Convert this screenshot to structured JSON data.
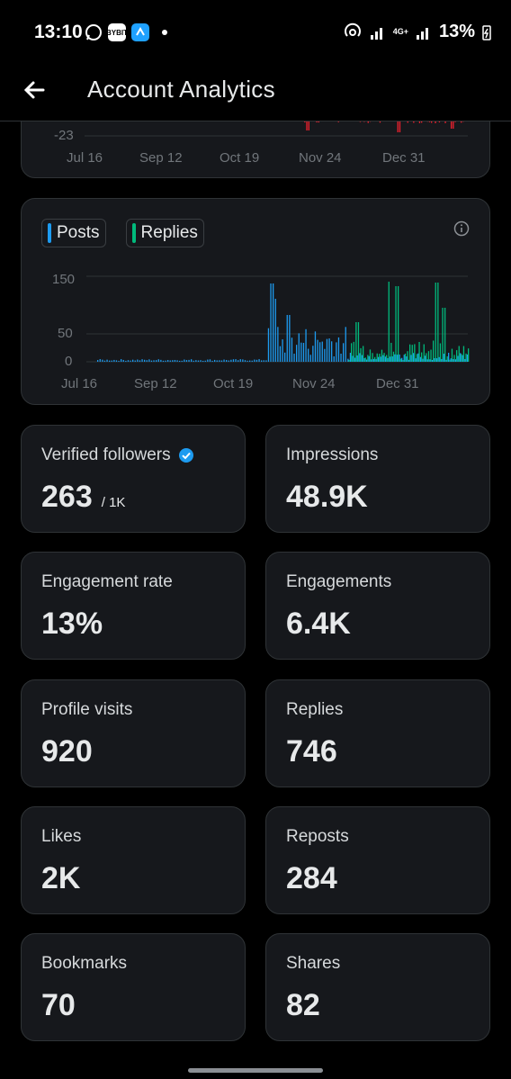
{
  "status_bar": {
    "time": "13:10",
    "apps": [
      {
        "name": "whatsapp-icon",
        "color": "#ffffff"
      },
      {
        "name": "bybit-icon",
        "text": "BYBIT",
        "color": "#ffffff"
      },
      {
        "name": "app-icon",
        "color": "#1fa1ff"
      }
    ],
    "network": "4G+",
    "battery": "13%"
  },
  "header": {
    "title": "Account Analytics"
  },
  "top_chart": {
    "ytick": "-23",
    "xticks": [
      "Jul 16",
      "Sep 12",
      "Oct 19",
      "Nov 24",
      "Dec 31"
    ]
  },
  "activity_chart": {
    "legend": [
      {
        "label": "Posts",
        "color": "#1d9bf0"
      },
      {
        "label": "Replies",
        "color": "#00ba7c"
      }
    ],
    "yticks": [
      "150",
      "50",
      "0"
    ],
    "xticks": [
      "Jul 16",
      "Sep 12",
      "Oct 19",
      "Nov 24",
      "Dec 31"
    ]
  },
  "stats": [
    {
      "label": "Verified followers",
      "value": "263",
      "sub": "/ 1K",
      "verified": true
    },
    {
      "label": "Impressions",
      "value": "48.9K"
    },
    {
      "label": "Engagement rate",
      "value": "13%"
    },
    {
      "label": "Engagements",
      "value": "6.4K"
    },
    {
      "label": "Profile visits",
      "value": "920"
    },
    {
      "label": "Replies",
      "value": "746"
    },
    {
      "label": "Likes",
      "value": "2K"
    },
    {
      "label": "Reposts",
      "value": "284"
    },
    {
      "label": "Bookmarks",
      "value": "70"
    },
    {
      "label": "Shares",
      "value": "82"
    }
  ]
}
